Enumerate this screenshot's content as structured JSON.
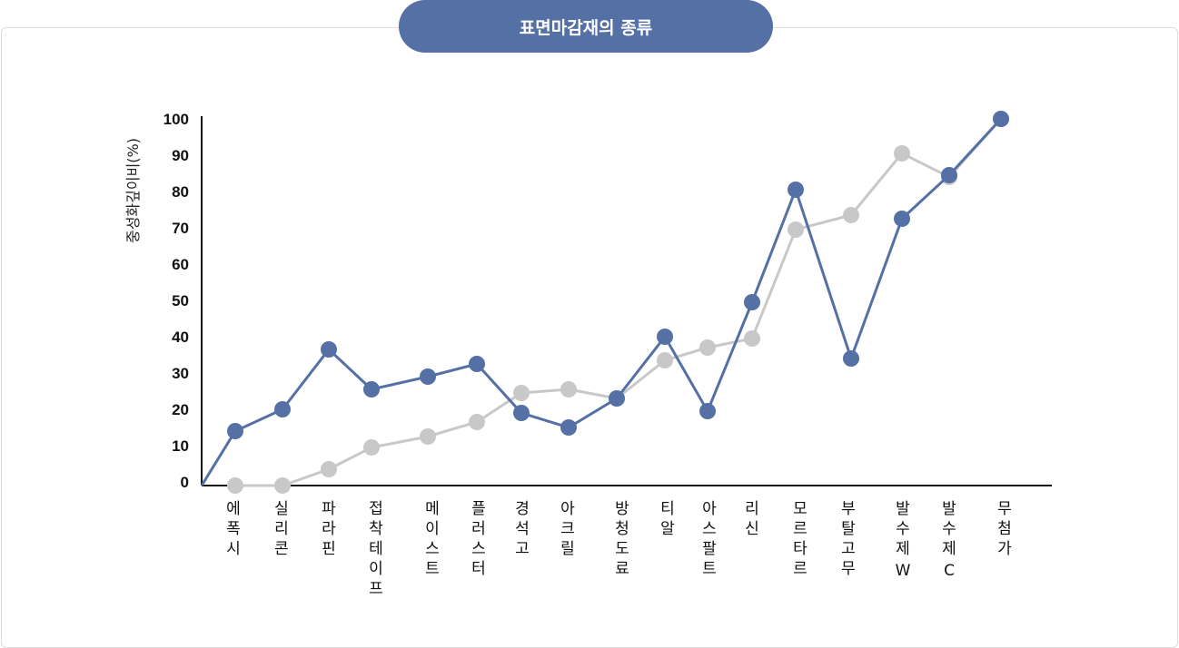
{
  "title": "표면마감재의 종류",
  "chart_data": {
    "type": "line",
    "title": "표면마감재의 종류",
    "xlabel": "",
    "ylabel": "중성화깊이비(%)",
    "ylim": [
      0,
      100
    ],
    "yticks": [
      "0",
      "10",
      "20",
      "30",
      "40",
      "50",
      "60",
      "70",
      "80",
      "90",
      "100"
    ],
    "categories": [
      [
        "에",
        "폭",
        "시"
      ],
      [
        "실",
        "리",
        "콘"
      ],
      [
        "파",
        "라",
        "핀"
      ],
      [
        "접",
        "착",
        "테",
        "이",
        "프"
      ],
      [
        "메",
        "이",
        "스",
        "트"
      ],
      [
        "플",
        "러",
        "스",
        "터"
      ],
      [
        "경",
        "석",
        "고"
      ],
      [
        "아",
        "크",
        "릴"
      ],
      [
        "방",
        "청",
        "도",
        "료"
      ],
      [
        "티",
        "알"
      ],
      [
        "아",
        "스",
        "팔",
        "트"
      ],
      [
        "리",
        "신"
      ],
      [
        "모",
        "르",
        "타",
        "르"
      ],
      [
        "부",
        "탈",
        "고",
        "무"
      ],
      [
        "발",
        "수",
        "제",
        "W"
      ],
      [
        "발",
        "수",
        "제",
        "C"
      ],
      [
        "무",
        "첨",
        "가"
      ]
    ],
    "series": [
      {
        "color": "#5470a4",
        "values": [
          14,
          20,
          36.5,
          25.5,
          29,
          32.5,
          19,
          15,
          23,
          40,
          19.5,
          49.5,
          80.5,
          34,
          72.5,
          84.5,
          100
        ]
      },
      {
        "color": "#c8c8c8",
        "values": [
          -1,
          -1,
          3.5,
          9.5,
          12.5,
          16.5,
          24.5,
          25.5,
          23,
          33.5,
          37,
          39.5,
          69.5,
          73.5,
          90.5,
          84,
          100
        ]
      }
    ],
    "legend": "none",
    "grid": false
  }
}
